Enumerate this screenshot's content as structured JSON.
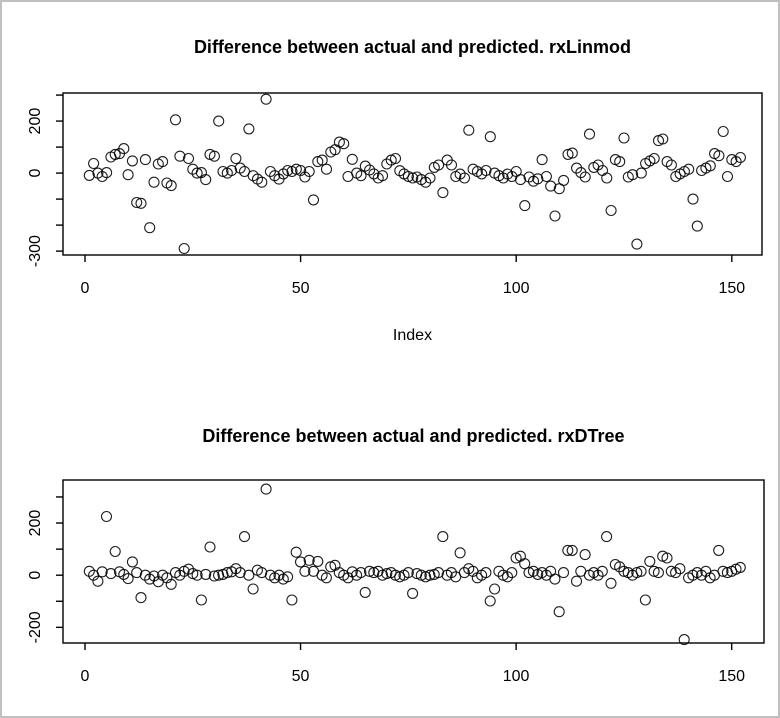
{
  "window": {
    "background": "#ffffff",
    "border_color": "#c0c0c0",
    "point_color": "#000000",
    "axis_color": "#000000"
  },
  "chart_data": [
    {
      "type": "scatter",
      "title": "Difference between actual and predicted. rxLinmod",
      "xlabel": "Index",
      "ylabel": "",
      "point_symbol": "open-circle",
      "xlim": [
        -5.1,
        157
      ],
      "ylim": [
        -315,
        308
      ],
      "xticks": [
        0,
        50,
        100,
        150
      ],
      "xtick_labels": [
        "0",
        "50",
        "100",
        "150"
      ],
      "yticks": [
        -300,
        -200,
        -100,
        0,
        100,
        200,
        300
      ],
      "ytick_labels": [
        "-300",
        "",
        "",
        "0",
        "",
        "200",
        ""
      ],
      "grid": false,
      "legend": "none",
      "x_start_index": 1,
      "values": [
        -9,
        37,
        0,
        -13,
        2,
        62,
        72,
        75,
        94,
        -6,
        47,
        -113,
        -116,
        52,
        -210,
        -35,
        35,
        44,
        -38,
        -48,
        205,
        65,
        -290,
        56,
        15,
        0,
        2,
        -25,
        72,
        65,
        200,
        6,
        0,
        10,
        56,
        19,
        6,
        170,
        -10,
        -23,
        -35,
        284,
        6,
        -10,
        -23,
        -3,
        10,
        6,
        15,
        10,
        -15,
        6,
        -103,
        44,
        50,
        15,
        81,
        90,
        119,
        113,
        -13,
        53,
        0,
        -10,
        27,
        12,
        -3,
        -19,
        -10,
        35,
        50,
        56,
        9,
        -3,
        -13,
        -19,
        -15,
        -25,
        -35,
        -19,
        22,
        31,
        -75,
        50,
        31,
        -13,
        -4,
        -19,
        165,
        15,
        6,
        -3,
        10,
        140,
        0,
        -10,
        -19,
        -4,
        -13,
        6,
        -25,
        -125,
        -15,
        -31,
        -22,
        52,
        -13,
        -50,
        -165,
        -60,
        -28,
        72,
        77,
        19,
        2,
        -15,
        150,
        22,
        31,
        10,
        -19,
        -144,
        52,
        44,
        135,
        -15,
        -6,
        -273,
        0,
        37,
        47,
        56,
        125,
        131,
        44,
        31,
        -13,
        -3,
        6,
        15,
        -100,
        -204,
        10,
        19,
        28,
        75,
        67,
        160,
        -13,
        52,
        44,
        60
      ]
    },
    {
      "type": "scatter",
      "title": "Difference between actual and predicted. rxDTree",
      "xlabel": "",
      "ylabel": "",
      "point_symbol": "open-circle",
      "xlim": [
        -5.1,
        157.5
      ],
      "ylim": [
        -260,
        365
      ],
      "xticks": [
        0,
        50,
        100,
        150
      ],
      "xtick_labels": [
        "0",
        "50",
        "100",
        "150"
      ],
      "yticks": [
        -200,
        -100,
        0,
        100,
        200,
        300
      ],
      "ytick_labels": [
        "-200",
        "",
        "0",
        "",
        "200",
        ""
      ],
      "grid": false,
      "legend": "none",
      "x_start_index": 1,
      "values": [
        15,
        0,
        -23,
        13,
        225,
        6,
        91,
        13,
        3,
        -13,
        51,
        10,
        -86,
        0,
        -15,
        -3,
        -25,
        0,
        -10,
        -35,
        10,
        0,
        15,
        23,
        6,
        0,
        -95,
        3,
        108,
        -3,
        0,
        3,
        10,
        13,
        25,
        10,
        148,
        0,
        -53,
        19,
        10,
        330,
        0,
        -10,
        0,
        -15,
        -6,
        -95,
        88,
        51,
        15,
        57,
        15,
        53,
        0,
        -10,
        32,
        38,
        10,
        0,
        -10,
        13,
        0,
        10,
        -66,
        15,
        10,
        15,
        0,
        6,
        10,
        0,
        -6,
        0,
        10,
        -70,
        6,
        0,
        -6,
        0,
        3,
        10,
        148,
        0,
        10,
        -6,
        86,
        10,
        25,
        15,
        -10,
        0,
        10,
        -99,
        -53,
        15,
        0,
        -6,
        10,
        66,
        73,
        44,
        10,
        15,
        3,
        10,
        0,
        15,
        -15,
        -140,
        10,
        95,
        95,
        -23,
        15,
        79,
        0,
        10,
        0,
        15,
        148,
        -31,
        41,
        32,
        15,
        10,
        0,
        10,
        15,
        -95,
        53,
        15,
        10,
        73,
        66,
        15,
        10,
        25,
        -247,
        -10,
        0,
        10,
        0,
        15,
        -10,
        0,
        95,
        15,
        10,
        15,
        23,
        30
      ]
    }
  ]
}
